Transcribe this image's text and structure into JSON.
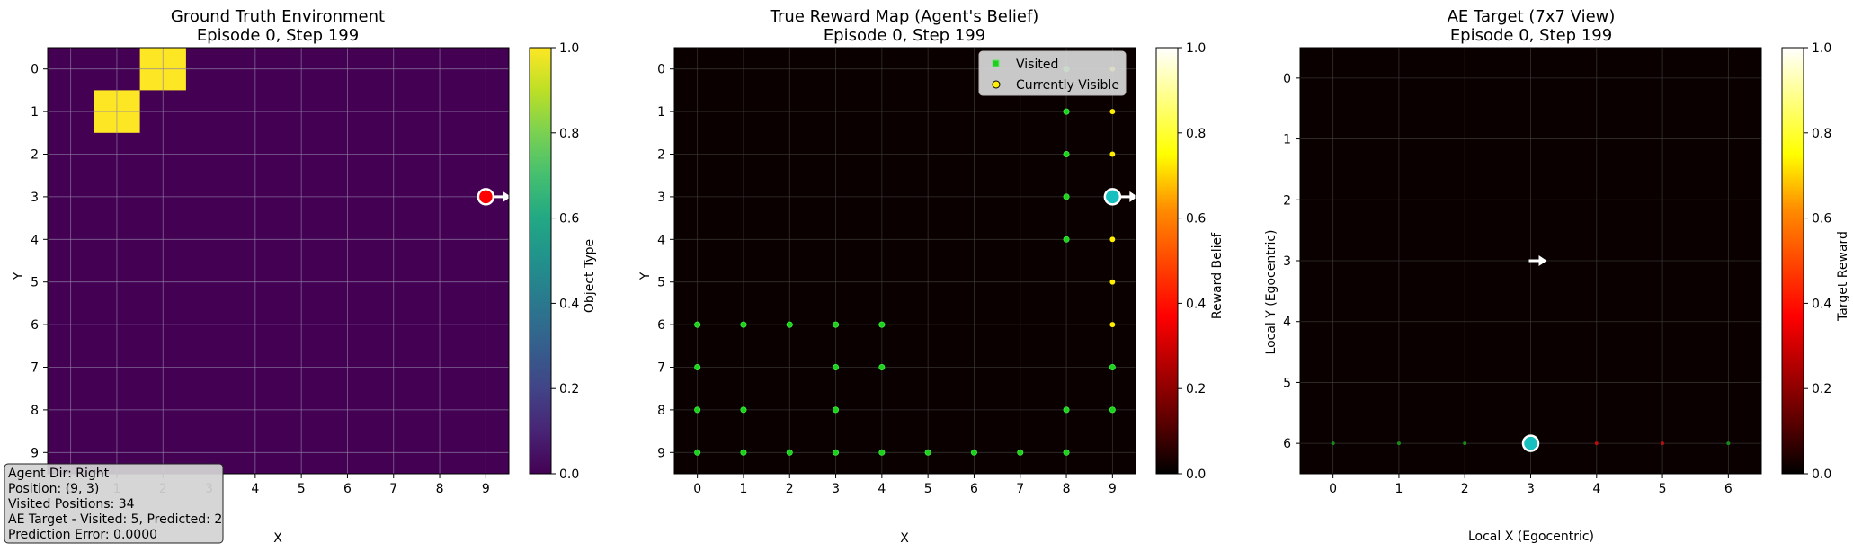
{
  "panels": [
    {
      "title_line1": "Ground Truth Environment",
      "title_line2": "Episode 0, Step 199",
      "xlabel": "X",
      "ylabel": "Y",
      "colorbar_label": "Object Type"
    },
    {
      "title_line1": "True Reward Map (Agent's Belief)",
      "title_line2": "Episode 0, Step 199",
      "xlabel": "X",
      "ylabel": "Y",
      "colorbar_label": "Reward Belief",
      "legend": [
        "Visited",
        "Currently Visible"
      ]
    },
    {
      "title_line1": "AE Target (7x7 View)",
      "title_line2": "Episode 0, Step 199",
      "xlabel": "Local X (Egocentric)",
      "ylabel": "Local Y (Egocentric)",
      "colorbar_label": "Target Reward"
    }
  ],
  "info_box": {
    "lines": [
      "Agent Dir: Right",
      "Position: (9, 3)",
      "Visited Positions: 34",
      "AE Target - Visited: 5, Predicted: 2",
      "Prediction Error: 0.0000"
    ]
  },
  "chart_data": [
    {
      "type": "heatmap",
      "title": "Ground Truth Environment\nEpisode 0, Step 199",
      "xlabel": "X",
      "ylabel": "Y",
      "grid_size": [
        10,
        10
      ],
      "x_ticks": [
        0,
        1,
        2,
        3,
        4,
        5,
        6,
        7,
        8,
        9
      ],
      "y_ticks": [
        0,
        1,
        2,
        3,
        4,
        5,
        6,
        7,
        8,
        9
      ],
      "background_value": 0.0,
      "cells": [
        {
          "x": 2,
          "y": 0,
          "value": 1.0
        },
        {
          "x": 1,
          "y": 1,
          "value": 1.0
        }
      ],
      "agent": {
        "x": 9,
        "y": 3,
        "dir": "right",
        "color": "#ff0000"
      },
      "colorbar": {
        "label": "Object Type",
        "range": [
          0.0,
          1.0
        ],
        "ticks": [
          0.0,
          0.2,
          0.4,
          0.6,
          0.8,
          1.0
        ],
        "colormap": "viridis"
      },
      "grid": true
    },
    {
      "type": "heatmap",
      "title": "True Reward Map (Agent's Belief)\nEpisode 0, Step 199",
      "xlabel": "X",
      "ylabel": "Y",
      "grid_size": [
        10,
        10
      ],
      "x_ticks": [
        0,
        1,
        2,
        3,
        4,
        5,
        6,
        7,
        8,
        9
      ],
      "y_ticks": [
        0,
        1,
        2,
        3,
        4,
        5,
        6,
        7,
        8,
        9
      ],
      "background_value": 0.0,
      "visited": [
        [
          8,
          0
        ],
        [
          8,
          1
        ],
        [
          8,
          2
        ],
        [
          8,
          3
        ],
        [
          8,
          4
        ],
        [
          0,
          6
        ],
        [
          1,
          6
        ],
        [
          2,
          6
        ],
        [
          3,
          6
        ],
        [
          4,
          6
        ],
        [
          0,
          7
        ],
        [
          3,
          7
        ],
        [
          4,
          7
        ],
        [
          0,
          8
        ],
        [
          1,
          8
        ],
        [
          3,
          8
        ],
        [
          8,
          8
        ],
        [
          9,
          8
        ],
        [
          0,
          9
        ],
        [
          1,
          9
        ],
        [
          2,
          9
        ],
        [
          3,
          9
        ],
        [
          4,
          9
        ],
        [
          5,
          9
        ],
        [
          6,
          9
        ],
        [
          7,
          9
        ],
        [
          8,
          9
        ],
        [
          9,
          7
        ]
      ],
      "visible": [
        [
          9,
          0
        ],
        [
          9,
          1
        ],
        [
          9,
          2
        ],
        [
          9,
          4
        ],
        [
          9,
          5
        ],
        [
          9,
          6
        ]
      ],
      "agent": {
        "x": 9,
        "y": 3,
        "dir": "right",
        "color": "#17bfbf"
      },
      "legend": {
        "entries": [
          "Visited",
          "Currently Visible"
        ],
        "placement": "upper-right"
      },
      "colorbar": {
        "label": "Reward Belief",
        "range": [
          0.0,
          1.0
        ],
        "ticks": [
          0.0,
          0.2,
          0.4,
          0.6,
          0.8,
          1.0
        ],
        "colormap": "hot"
      },
      "grid": true
    },
    {
      "type": "heatmap",
      "title": "AE Target (7x7 View)\nEpisode 0, Step 199",
      "xlabel": "Local X (Egocentric)",
      "ylabel": "Local Y (Egocentric)",
      "grid_size": [
        7,
        7
      ],
      "x_ticks": [
        0,
        1,
        2,
        3,
        4,
        5,
        6
      ],
      "y_ticks": [
        0,
        1,
        2,
        3,
        4,
        5,
        6
      ],
      "background_value": 0.0,
      "markers": [
        {
          "x": 0,
          "y": 6,
          "color": "#1a8a1a"
        },
        {
          "x": 1,
          "y": 6,
          "color": "#1a8a1a"
        },
        {
          "x": 2,
          "y": 6,
          "color": "#1a8a1a"
        },
        {
          "x": 4,
          "y": 6,
          "color": "#b01010"
        },
        {
          "x": 5,
          "y": 6,
          "color": "#b01010"
        },
        {
          "x": 6,
          "y": 6,
          "color": "#1a8a1a"
        }
      ],
      "agent": {
        "x": 3,
        "y": 6,
        "color": "#17bfbf"
      },
      "direction_arrow": {
        "x": 3,
        "y": 3,
        "dir": "right"
      },
      "colorbar": {
        "label": "Target Reward",
        "range": [
          0.0,
          1.0
        ],
        "ticks": [
          0.0,
          0.2,
          0.4,
          0.6,
          0.8,
          1.0
        ],
        "colormap": "hot"
      },
      "grid": true
    }
  ]
}
